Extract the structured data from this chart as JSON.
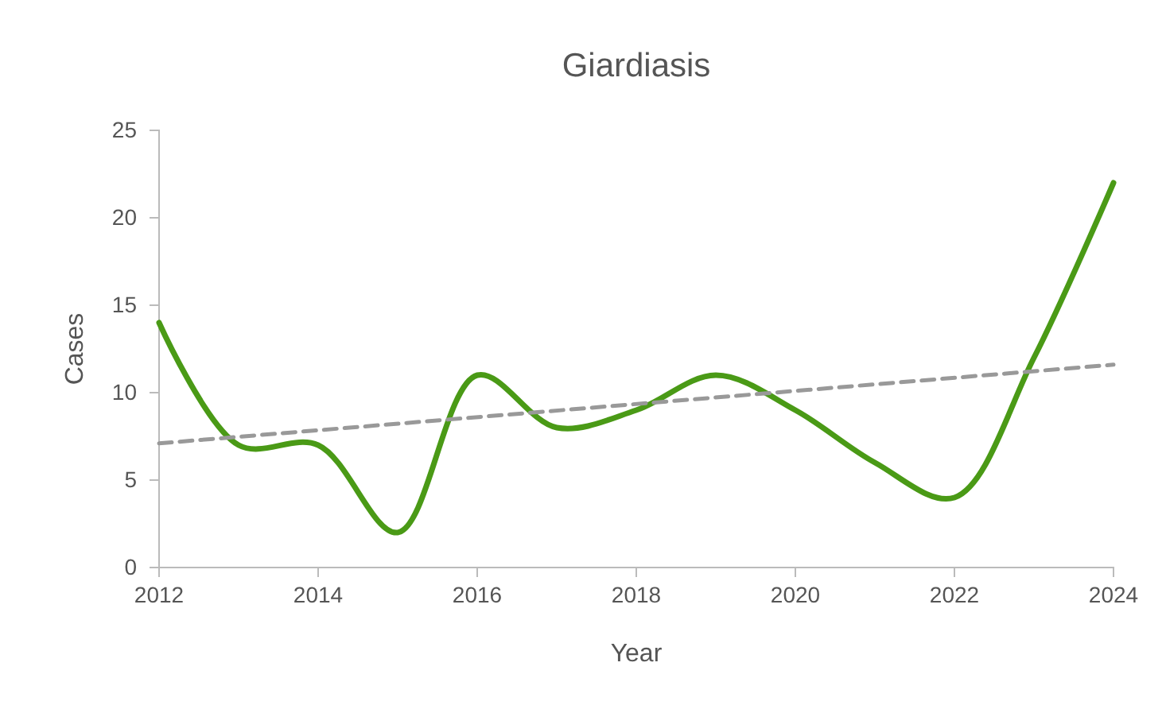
{
  "chart_data": {
    "type": "line",
    "title": "Giardiasis",
    "xlabel": "Year",
    "ylabel": "Cases",
    "x": [
      2012,
      2013,
      2014,
      2015,
      2016,
      2017,
      2018,
      2019,
      2020,
      2021,
      2022,
      2023,
      2024
    ],
    "series": [
      {
        "color": "#4a9a16",
        "values": [
          14,
          7,
          7,
          2,
          11,
          8,
          9,
          11,
          9,
          6,
          4,
          12,
          22
        ],
        "line_style": "solid"
      },
      {
        "type": "line",
        "color": "#999999",
        "x": [
          2012,
          2024
        ],
        "values": [
          7.1,
          11.6
        ],
        "line_style": "dashed"
      }
    ],
    "xlim": [
      2012,
      2024
    ],
    "xticks": [
      2012,
      2014,
      2016,
      2018,
      2020,
      2022,
      2024
    ],
    "ylim": [
      0,
      25
    ],
    "yticks": [
      0,
      5,
      10,
      15,
      20,
      25
    ],
    "grid": false
  }
}
